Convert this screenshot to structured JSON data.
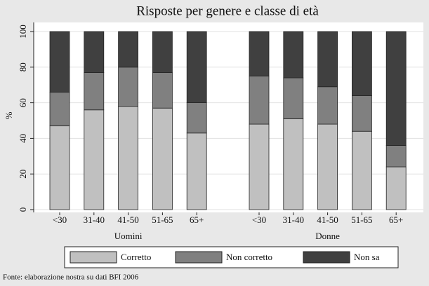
{
  "chart_data": {
    "type": "stacked_bar",
    "title": "Risposte per genere e classe di età",
    "y_label": "%",
    "categories": [
      "<30",
      "31-40",
      "41-50",
      "51-65",
      "65+",
      "<30",
      "31-40",
      "41-50",
      "51-65",
      "65+"
    ],
    "groups": [
      "Uomini",
      "Donne"
    ],
    "series": [
      {
        "name": "Corretto",
        "color": "#c0c0c0",
        "values": [
          47,
          56,
          58,
          57,
          43,
          48,
          51,
          48,
          44,
          24
        ]
      },
      {
        "name": "Non corretto",
        "color": "#808080",
        "values": [
          19,
          21,
          22,
          20,
          17,
          27,
          23,
          21,
          20,
          12
        ]
      },
      {
        "name": "Non sa",
        "color": "#404040",
        "values": [
          34,
          23,
          20,
          23,
          40,
          25,
          26,
          31,
          36,
          64
        ]
      }
    ],
    "ylim": [
      0,
      100
    ],
    "yticks": [
      0,
      20,
      40,
      60,
      80,
      100
    ],
    "grid": true,
    "source": "Fonte: elaborazione nostra su dati BFI 2006"
  }
}
